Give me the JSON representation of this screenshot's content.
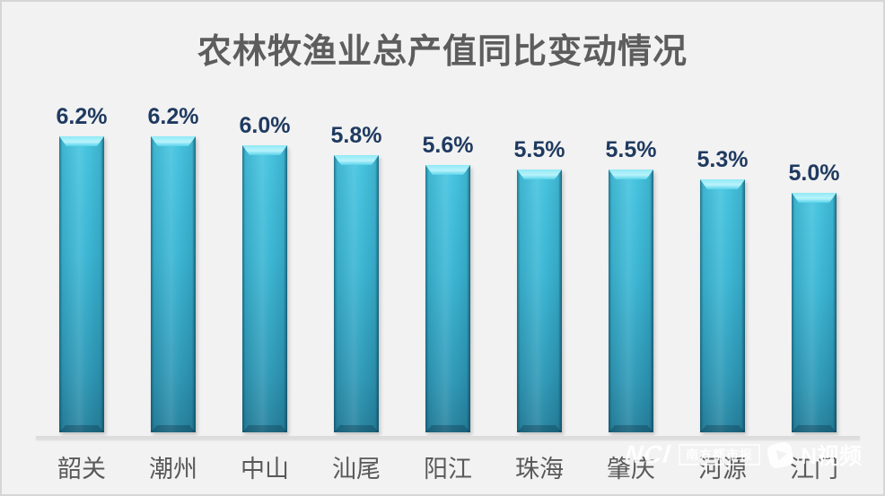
{
  "page": {
    "background": "#f2f2f2",
    "frame_color": "#d6d6d6"
  },
  "chart_data": {
    "type": "bar",
    "title": "农林牧渔业总产值同比变动情况",
    "categories": [
      "韶关",
      "潮州",
      "中山",
      "汕尾",
      "阳江",
      "珠海",
      "肇庆",
      "河源",
      "江门"
    ],
    "values": [
      6.2,
      6.2,
      6.0,
      5.8,
      5.6,
      5.5,
      5.5,
      5.3,
      5.0
    ],
    "value_labels": [
      "6.2%",
      "6.2%",
      "6.0%",
      "5.8%",
      "5.6%",
      "5.5%",
      "5.5%",
      "5.3%",
      "5.0%"
    ],
    "unit": "%",
    "ylim": [
      0,
      6.5
    ],
    "grid": false,
    "legend": null,
    "xlabel": "",
    "ylabel": "",
    "colors": {
      "bar_top": "#45c4e0",
      "bar_bottom": "#27839f",
      "bar_edge": "#14384d",
      "value_label": "#1f3a60",
      "category_label": "#595959",
      "title": "#5d5d5d",
      "axis_line": "#dcdcdc"
    }
  },
  "watermark": {
    "logo_text": "NCl",
    "badge_text": "南方都市报",
    "video_label": "N视频"
  }
}
